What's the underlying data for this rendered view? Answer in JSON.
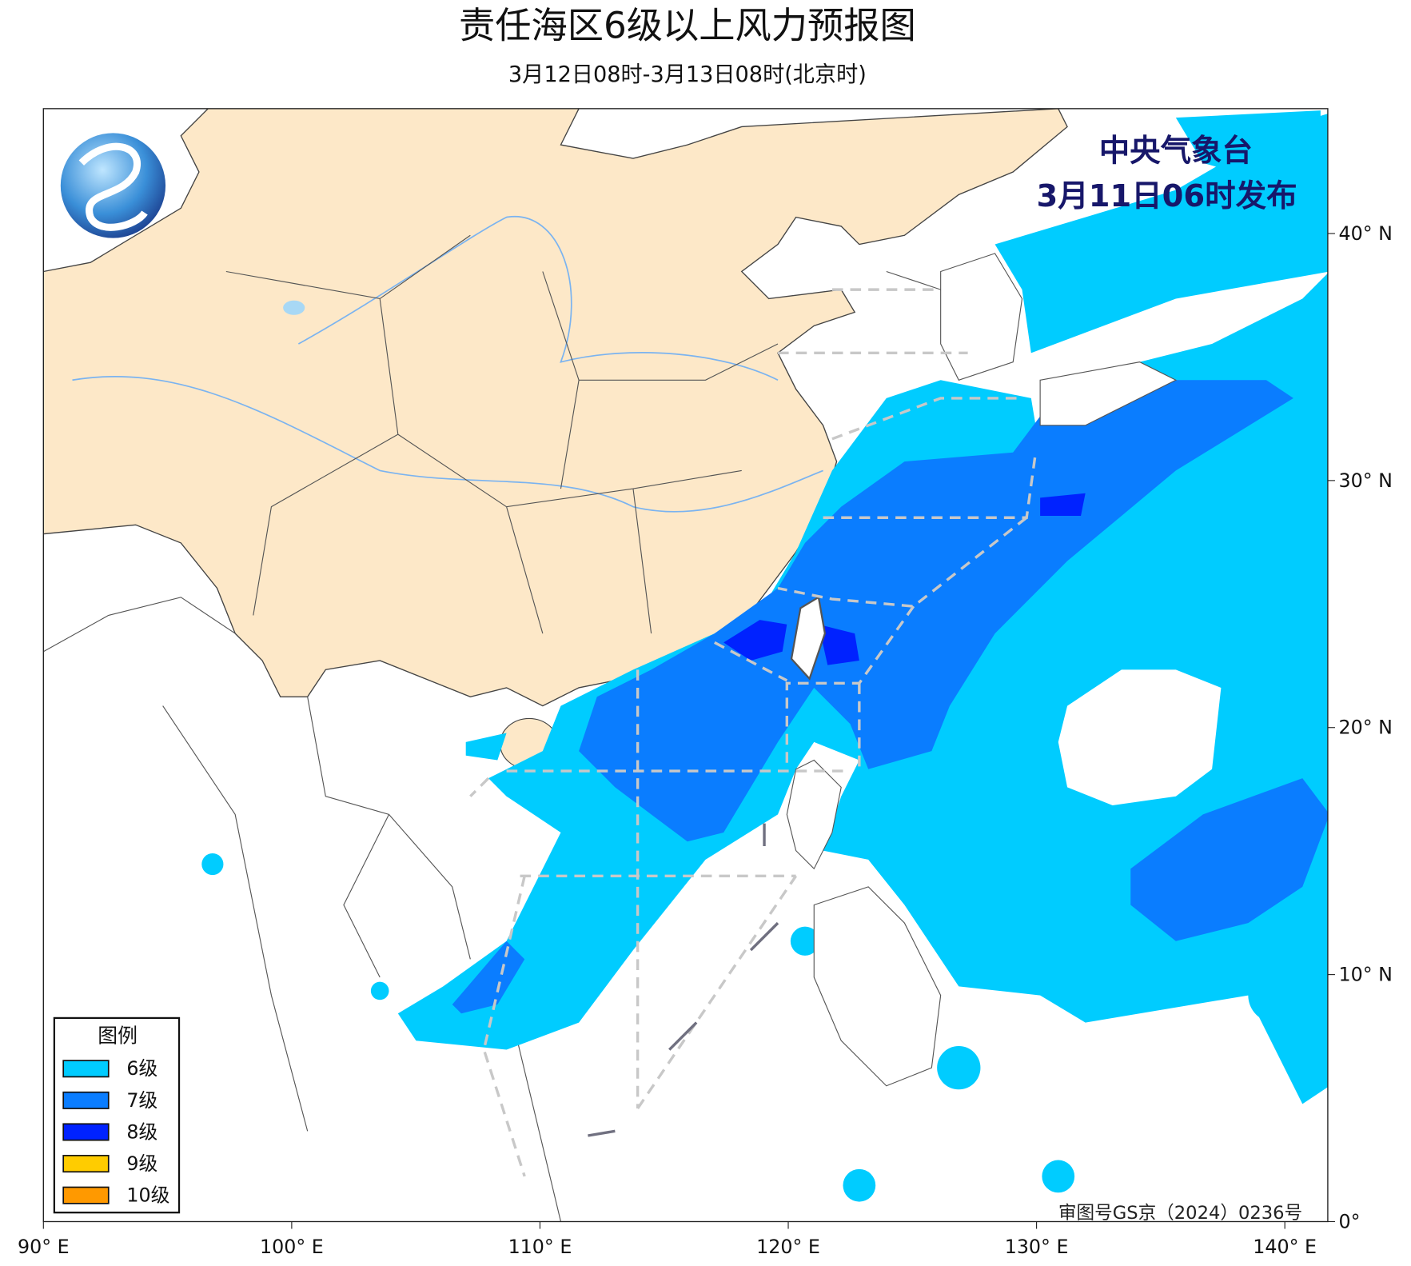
{
  "title": "责任海区6级以上风力预报图",
  "subtitle": "3月12日08时-3月13日08时(北京时)",
  "issuer": {
    "name": "中央气象台",
    "time": "3月11日06时发布"
  },
  "legend": {
    "title": "图例",
    "items": [
      {
        "label": "6级",
        "color": "#00ccff"
      },
      {
        "label": "7级",
        "color": "#0a7dff"
      },
      {
        "label": "8级",
        "color": "#0022ff"
      },
      {
        "label": "9级",
        "color": "#ffcc00"
      },
      {
        "label": "10级",
        "color": "#ff9900"
      }
    ]
  },
  "axes": {
    "lon_labels": [
      "90° E",
      "100° E",
      "110° E",
      "120° E",
      "130° E",
      "140° E"
    ],
    "lat_labels": [
      "40° N",
      "30° N",
      "20° N",
      "10° N",
      "0°"
    ]
  },
  "approval": "审图号GS京（2024）0236号"
}
